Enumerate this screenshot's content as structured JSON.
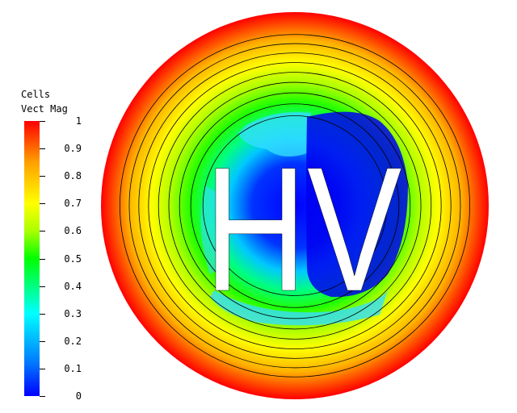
{
  "legend": {
    "title_line1": "Cells",
    "title_line2": "Vect Mag"
  },
  "chart_data": {
    "type": "heatmap",
    "colorbar": {
      "min": 0,
      "max": 1,
      "ticks": [
        "1",
        "0.9",
        "0.8",
        "0.7",
        "0.6",
        "0.5",
        "0.4",
        "0.3",
        "0.2",
        "0.1",
        "0"
      ],
      "tick_values": [
        1,
        0.9,
        0.8,
        0.7,
        0.6,
        0.5,
        0.4,
        0.3,
        0.2,
        0.1,
        0
      ],
      "colors": [
        "#0000ff",
        "#00ffff",
        "#00ff00",
        "#ffff00",
        "#ff0000"
      ]
    },
    "annotation": "HV",
    "contour_levels": [
      0.1,
      0.2,
      0.3,
      0.4,
      0.5,
      0.6,
      0.7,
      0.8,
      0.9
    ]
  }
}
